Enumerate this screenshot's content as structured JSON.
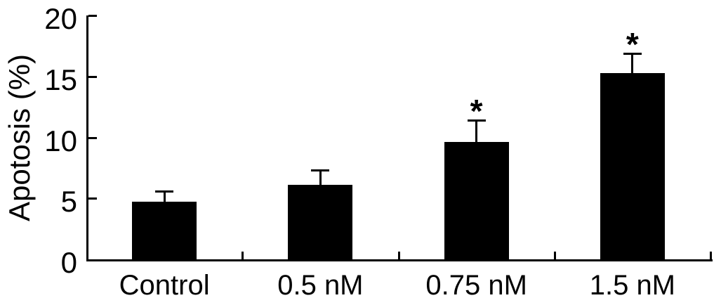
{
  "chart_data": {
    "type": "bar",
    "title": "",
    "xlabel": "",
    "ylabel": "Apotosis (%)",
    "categories": [
      "Control",
      "0.5 nM",
      "0.75 nM",
      "1.5 nM"
    ],
    "values": [
      4.7,
      6.1,
      9.6,
      15.3
    ],
    "errors": [
      0.9,
      1.2,
      1.8,
      1.6
    ],
    "significance": [
      "",
      "",
      "*",
      "*"
    ],
    "ylim": [
      0,
      20
    ],
    "yticks": [
      0,
      5,
      10,
      15,
      20
    ],
    "ytick_labels": [
      "0",
      "5",
      "10",
      "15",
      "20"
    ],
    "grid": false,
    "legend": null,
    "bar_color": "#000000",
    "axis_color": "#000000",
    "text_color": "#000000",
    "background_color": "#ffffff"
  }
}
